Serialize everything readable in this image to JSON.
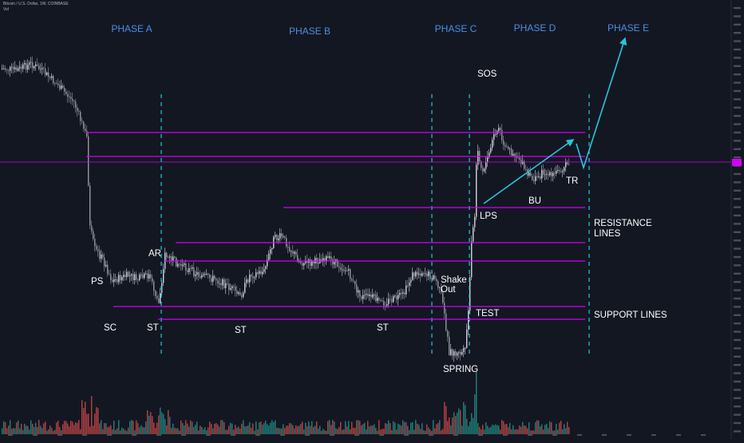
{
  "header": {
    "symbol_line": "Bitcoin / U.S. Dollar, 1W, COINBASE",
    "volume_label": "Vol"
  },
  "colors": {
    "background": "#131722",
    "up": "#d1d4dc",
    "down": "#9598a1",
    "vol_up": "#26a69a",
    "vol_down": "#ef5350",
    "level_line": "#d500f9",
    "phase_divider": "#26c6da",
    "phase_text": "#4a90e2",
    "arrow": "#26c6da"
  },
  "chart_data": {
    "type": "candlestick",
    "title": "",
    "phases": [
      {
        "label": "PHASE A"
      },
      {
        "label": "PHASE B"
      },
      {
        "label": "PHASE C"
      },
      {
        "label": "PHASE D"
      },
      {
        "label": "PHASE E"
      }
    ],
    "annotations": [
      {
        "label": "PS"
      },
      {
        "label": "SC"
      },
      {
        "label": "AR"
      },
      {
        "label": "ST"
      },
      {
        "label": "ST"
      },
      {
        "label": "ST"
      },
      {
        "label": "Shake"
      },
      {
        "label": "Out"
      },
      {
        "label": "TEST"
      },
      {
        "label": "SPRING"
      },
      {
        "label": "SOS"
      },
      {
        "label": "LPS"
      },
      {
        "label": "BU"
      },
      {
        "label": "TR"
      }
    ],
    "legend_text": {
      "resistance": [
        "RESISTANCE",
        "LINES"
      ],
      "support": "SUPPORT LINES"
    },
    "resistance_count": 5,
    "support_count": 2
  }
}
